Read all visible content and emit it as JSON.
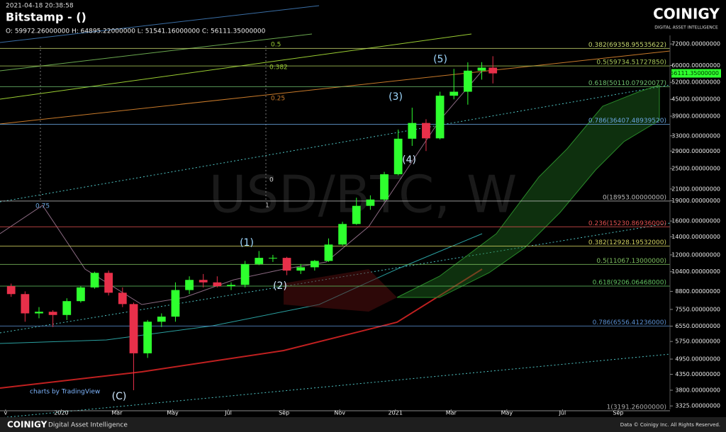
{
  "header": {
    "timestamp": "2021-04-18 20:38:58",
    "title": "Bitstamp -  ()",
    "ohlc": "O: 59972.26000000 H: 64895.22000000 L: 51541.16000000 C: 56111.35000000"
  },
  "logo": {
    "name": "COINIGY",
    "tagline": "DIGITAL ASSET INTELLIGENCE"
  },
  "footer": {
    "brand": "COINIGY",
    "tagline": "Digital Asset Intelligence",
    "credit": "Data © Coinigy Inc. All Rights Reserved.",
    "tradingview": "charts by TradingView"
  },
  "chart_data": {
    "type": "candlestick",
    "watermark": "USD/BTC, W",
    "up_color": "#2eff2e",
    "down_color": "#e8304a",
    "log_scale": true,
    "xlim": [
      -2.2,
      21.86
    ],
    "xticks": [
      {
        "value": -2,
        "label": "v"
      },
      {
        "value": 0,
        "label": "2020"
      },
      {
        "value": 2,
        "label": "Mar"
      },
      {
        "value": 4,
        "label": "May"
      },
      {
        "value": 6,
        "label": "Jul"
      },
      {
        "value": 8,
        "label": "Sep"
      },
      {
        "value": 10,
        "label": "Nov"
      },
      {
        "value": 12,
        "label": "2021"
      },
      {
        "value": 14,
        "label": "Mar"
      },
      {
        "value": 16,
        "label": "May"
      },
      {
        "value": 18,
        "label": "Jul"
      },
      {
        "value": 20,
        "label": "Sep"
      }
    ],
    "ylim": [
      3230,
      77450
    ],
    "yticks": [
      {
        "value": 72000,
        "label": "72000.00000000"
      },
      {
        "value": 60000,
        "label": "60000.00000000"
      },
      {
        "value": 52000,
        "label": "52000.00000000"
      },
      {
        "value": 45000,
        "label": "45000.00000000"
      },
      {
        "value": 39000,
        "label": "39000.00000000"
      },
      {
        "value": 33000,
        "label": "33000.00000000"
      },
      {
        "value": 29000,
        "label": "29000.00000000"
      },
      {
        "value": 25000,
        "label": "25000.00000000"
      },
      {
        "value": 21000,
        "label": "21000.00000000"
      },
      {
        "value": 19000,
        "label": "19000.00000000"
      },
      {
        "value": 16000,
        "label": "16000.00000000"
      },
      {
        "value": 14000,
        "label": "14000.00000000"
      },
      {
        "value": 12000,
        "label": "12000.00000000"
      },
      {
        "value": 10400,
        "label": "10400.00000000"
      },
      {
        "value": 8800,
        "label": "8800.00000000"
      },
      {
        "value": 7550,
        "label": "7550.00000000"
      },
      {
        "value": 6550,
        "label": "6550.00000000"
      },
      {
        "value": 5750,
        "label": "5750.00000000"
      },
      {
        "value": 4950,
        "label": "4950.00000000"
      },
      {
        "value": 4350,
        "label": "4350.00000000"
      },
      {
        "value": 3800,
        "label": "3800.00000000"
      },
      {
        "value": 3325,
        "label": "3325.00000000"
      }
    ],
    "current_price": {
      "value": 56111.35,
      "label": "56111.35000000",
      "color": "#2eff2e"
    },
    "fib_levels": [
      {
        "value": 69358.95535622,
        "label": "0.382(69358.95535622)",
        "color": "#c8d96f"
      },
      {
        "value": 59734.5172785,
        "label": "0.5(59734.51727850)",
        "color": "#a8c85a"
      },
      {
        "value": 50110.07920077,
        "label": "0.618(50110.07920077)",
        "color": "#6fbf6f"
      },
      {
        "value": 36407.4893952,
        "label": "0.786(36407.48939520)",
        "color": "#6aa7e0"
      },
      {
        "value": 18953,
        "label": "0(18953.00000000)",
        "color": "#bbbbbb"
      },
      {
        "value": 15230.86936,
        "label": "0.236(15230.86936000)",
        "color": "#e05050"
      },
      {
        "value": 12928.19532,
        "label": "0.382(12928.19532000)",
        "color": "#d0d060"
      },
      {
        "value": 11067.13,
        "label": "0.5(11067.13000000)",
        "color": "#7fc060"
      },
      {
        "value": 9206.06468,
        "label": "0.618(9206.06468000)",
        "color": "#60c060"
      },
      {
        "value": 6556.41236,
        "label": "0.786(6556.41236000)",
        "color": "#5a8fd0"
      },
      {
        "value": 3191.26,
        "label": "1(3191.26000000)",
        "color": "#aaaaaa"
      }
    ],
    "annotations": [
      "(1)",
      "(2)",
      "(3)",
      "(4)",
      "(5)",
      "(C)",
      "0.5",
      "0.382",
      "0.25",
      "0",
      "1",
      "0.75"
    ],
    "candles": [
      {
        "x": -1.8,
        "o": 9200,
        "h": 9400,
        "l": 8400,
        "c": 8600
      },
      {
        "x": -1.3,
        "o": 8600,
        "h": 8800,
        "l": 6800,
        "c": 7300
      },
      {
        "x": -0.8,
        "o": 7300,
        "h": 7700,
        "l": 7000,
        "c": 7400
      },
      {
        "x": -0.3,
        "o": 7400,
        "h": 7500,
        "l": 6500,
        "c": 7200
      },
      {
        "x": 0.2,
        "o": 7200,
        "h": 8300,
        "l": 6900,
        "c": 8100
      },
      {
        "x": 0.7,
        "o": 8100,
        "h": 9200,
        "l": 8000,
        "c": 9100
      },
      {
        "x": 1.2,
        "o": 9100,
        "h": 10400,
        "l": 9000,
        "c": 10300
      },
      {
        "x": 1.7,
        "o": 10300,
        "h": 10500,
        "l": 8500,
        "c": 8700
      },
      {
        "x": 2.2,
        "o": 8700,
        "h": 9100,
        "l": 7700,
        "c": 7900
      },
      {
        "x": 2.6,
        "o": 7900,
        "h": 8000,
        "l": 3800,
        "c": 5200
      },
      {
        "x": 3.1,
        "o": 5200,
        "h": 6900,
        "l": 5000,
        "c": 6800
      },
      {
        "x": 3.6,
        "o": 6800,
        "h": 7300,
        "l": 6500,
        "c": 7100
      },
      {
        "x": 4.1,
        "o": 7100,
        "h": 9500,
        "l": 6800,
        "c": 8900
      },
      {
        "x": 4.6,
        "o": 8900,
        "h": 10000,
        "l": 8600,
        "c": 9700
      },
      {
        "x": 5.1,
        "o": 9700,
        "h": 10200,
        "l": 9100,
        "c": 9500
      },
      {
        "x": 5.6,
        "o": 9500,
        "h": 10000,
        "l": 9100,
        "c": 9200
      },
      {
        "x": 6.1,
        "o": 9200,
        "h": 9500,
        "l": 8900,
        "c": 9300
      },
      {
        "x": 6.6,
        "o": 9300,
        "h": 11400,
        "l": 9100,
        "c": 11100
      },
      {
        "x": 7.1,
        "o": 11100,
        "h": 12400,
        "l": 11000,
        "c": 11700
      },
      {
        "x": 7.6,
        "o": 11700,
        "h": 12000,
        "l": 11300,
        "c": 11700
      },
      {
        "x": 8.1,
        "o": 11700,
        "h": 11800,
        "l": 10100,
        "c": 10500
      },
      {
        "x": 8.6,
        "o": 10500,
        "h": 11100,
        "l": 10200,
        "c": 10800
      },
      {
        "x": 9.1,
        "o": 10800,
        "h": 11500,
        "l": 10500,
        "c": 11400
      },
      {
        "x": 9.6,
        "o": 11400,
        "h": 13800,
        "l": 11300,
        "c": 13100
      },
      {
        "x": 10.1,
        "o": 13100,
        "h": 15900,
        "l": 13000,
        "c": 15600
      },
      {
        "x": 10.6,
        "o": 15600,
        "h": 19500,
        "l": 15500,
        "c": 18200
      },
      {
        "x": 11.1,
        "o": 18200,
        "h": 19900,
        "l": 17600,
        "c": 19200
      },
      {
        "x": 11.6,
        "o": 19200,
        "h": 24300,
        "l": 19000,
        "c": 23800
      },
      {
        "x": 12.1,
        "o": 23800,
        "h": 34800,
        "l": 23600,
        "c": 32200
      },
      {
        "x": 12.6,
        "o": 32200,
        "h": 41900,
        "l": 30300,
        "c": 36800
      },
      {
        "x": 13.1,
        "o": 36800,
        "h": 38000,
        "l": 29000,
        "c": 32300
      },
      {
        "x": 13.6,
        "o": 32300,
        "h": 48000,
        "l": 32000,
        "c": 46400
      },
      {
        "x": 14.1,
        "o": 46400,
        "h": 58300,
        "l": 45000,
        "c": 48000
      },
      {
        "x": 14.6,
        "o": 48000,
        "h": 61600,
        "l": 43000,
        "c": 57400
      },
      {
        "x": 15.1,
        "o": 57400,
        "h": 61700,
        "l": 53200,
        "c": 58900
      },
      {
        "x": 15.5,
        "o": 58900,
        "h": 64900,
        "l": 51500,
        "c": 56100
      }
    ]
  }
}
